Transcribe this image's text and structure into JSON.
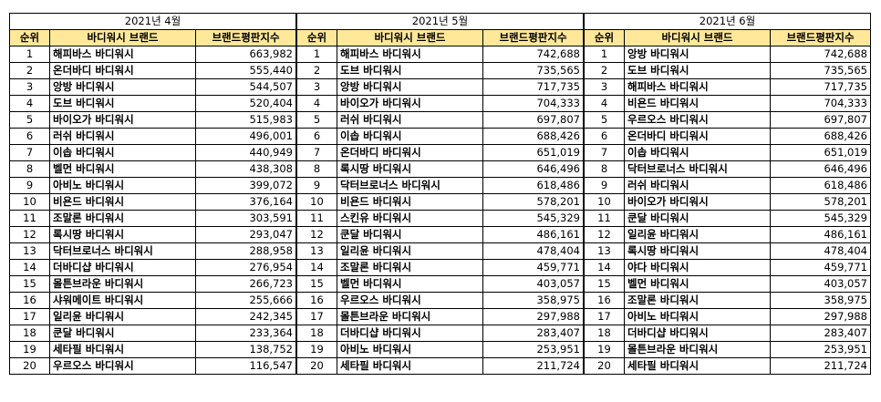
{
  "headers": {
    "rank": "순위",
    "brand": "바디워시 브랜드",
    "index": "브랜드평판지수"
  },
  "months": [
    {
      "title": "2021년 4월",
      "rows": [
        {
          "rank": "1",
          "brand": "해피바스 바디워시",
          "value": "663,982"
        },
        {
          "rank": "2",
          "brand": "온더바디 바디워시",
          "value": "555,440"
        },
        {
          "rank": "3",
          "brand": "앙방 바디워시",
          "value": "544,507"
        },
        {
          "rank": "4",
          "brand": "도브 바디워시",
          "value": "520,404"
        },
        {
          "rank": "5",
          "brand": "바이오가 바디워시",
          "value": "515,983"
        },
        {
          "rank": "6",
          "brand": "러쉬 바디워시",
          "value": "496,001"
        },
        {
          "rank": "7",
          "brand": "이솝 바디워시",
          "value": "440,949"
        },
        {
          "rank": "8",
          "brand": "벨먼 바디워시",
          "value": "438,308"
        },
        {
          "rank": "9",
          "brand": "아비노 바디워시",
          "value": "399,072"
        },
        {
          "rank": "10",
          "brand": "비욘드 바디워시",
          "value": "376,164"
        },
        {
          "rank": "11",
          "brand": "조말론 바디워시",
          "value": "303,591"
        },
        {
          "rank": "12",
          "brand": "록시땅 바디워시",
          "value": "293,047"
        },
        {
          "rank": "13",
          "brand": "닥터브로너스 바디워시",
          "value": "288,958"
        },
        {
          "rank": "14",
          "brand": "더바디샵 바디워시",
          "value": "276,954"
        },
        {
          "rank": "15",
          "brand": "몰튼브라운 바디워시",
          "value": "266,723"
        },
        {
          "rank": "16",
          "brand": "샤워메이트 바디워시",
          "value": "255,666"
        },
        {
          "rank": "17",
          "brand": "일리윤 바디워시",
          "value": "242,345"
        },
        {
          "rank": "18",
          "brand": "쿤달 바디워시",
          "value": "233,364"
        },
        {
          "rank": "19",
          "brand": "세타필 바디워시",
          "value": "138,752"
        },
        {
          "rank": "20",
          "brand": "우르오스 바디워시",
          "value": "116,547"
        }
      ]
    },
    {
      "title": "2021년 5월",
      "rows": [
        {
          "rank": "1",
          "brand": "해피바스 바디워시",
          "value": "742,688"
        },
        {
          "rank": "2",
          "brand": "도브 바디워시",
          "value": "735,565"
        },
        {
          "rank": "3",
          "brand": "앙방 바디워시",
          "value": "717,735"
        },
        {
          "rank": "4",
          "brand": "바이오가 바디워시",
          "value": "704,333"
        },
        {
          "rank": "5",
          "brand": "러쉬 바디워시",
          "value": "697,807"
        },
        {
          "rank": "6",
          "brand": "이솝 바디워시",
          "value": "688,426"
        },
        {
          "rank": "7",
          "brand": "온더바디 바디워시",
          "value": "651,019"
        },
        {
          "rank": "8",
          "brand": "록시땅 바디워시",
          "value": "646,496"
        },
        {
          "rank": "9",
          "brand": "닥터브로너스 바디워시",
          "value": "618,486"
        },
        {
          "rank": "10",
          "brand": "비욘드 바디워시",
          "value": "578,201"
        },
        {
          "rank": "11",
          "brand": "스킨유 바디워시",
          "value": "545,329"
        },
        {
          "rank": "12",
          "brand": "쿤달 바디워시",
          "value": "486,161"
        },
        {
          "rank": "13",
          "brand": "일리윤 바디워시",
          "value": "478,404"
        },
        {
          "rank": "14",
          "brand": "조말론 바디워시",
          "value": "459,771"
        },
        {
          "rank": "15",
          "brand": "벨먼 바디워시",
          "value": "403,057"
        },
        {
          "rank": "16",
          "brand": "우르오스 바디워시",
          "value": "358,975"
        },
        {
          "rank": "17",
          "brand": "몰튼브라운 바디워시",
          "value": "297,988"
        },
        {
          "rank": "18",
          "brand": "더바디샵 바디워시",
          "value": "283,407"
        },
        {
          "rank": "19",
          "brand": "아비노 바디워시",
          "value": "253,951"
        },
        {
          "rank": "20",
          "brand": "세타필 바디워시",
          "value": "211,724"
        }
      ]
    },
    {
      "title": "2021년 6월",
      "rows": [
        {
          "rank": "1",
          "brand": "앙방 바디워시",
          "value": "742,688"
        },
        {
          "rank": "2",
          "brand": "도브 바디워시",
          "value": "735,565"
        },
        {
          "rank": "3",
          "brand": "해피바스 바디워시",
          "value": "717,735"
        },
        {
          "rank": "4",
          "brand": "비욘드 바디워시",
          "value": "704,333"
        },
        {
          "rank": "5",
          "brand": "우르오스 바디워시",
          "value": "697,807"
        },
        {
          "rank": "6",
          "brand": "온더바디 바디워시",
          "value": "688,426"
        },
        {
          "rank": "7",
          "brand": "이솝 바디워시",
          "value": "651,019"
        },
        {
          "rank": "8",
          "brand": "닥터브로너스 바디워시",
          "value": "646,496"
        },
        {
          "rank": "9",
          "brand": "러쉬 바디워시",
          "value": "618,486"
        },
        {
          "rank": "10",
          "brand": "바이오가 바디워시",
          "value": "578,201"
        },
        {
          "rank": "11",
          "brand": "쿤달 바디워시",
          "value": "545,329"
        },
        {
          "rank": "12",
          "brand": "일리윤 바디워시",
          "value": "486,161"
        },
        {
          "rank": "13",
          "brand": "록시땅 바디워시",
          "value": "478,404"
        },
        {
          "rank": "14",
          "brand": "야다 바디워시",
          "value": "459,771"
        },
        {
          "rank": "15",
          "brand": "벨먼 바디워시",
          "value": "403,057"
        },
        {
          "rank": "16",
          "brand": "조말론 바디워시",
          "value": "358,975"
        },
        {
          "rank": "17",
          "brand": "아비노 바디워시",
          "value": "297,988"
        },
        {
          "rank": "18",
          "brand": "더바디샵 바디워시",
          "value": "283,407"
        },
        {
          "rank": "19",
          "brand": "몰튼브라운 바디워시",
          "value": "253,951"
        },
        {
          "rank": "20",
          "brand": "세타필 바디워시",
          "value": "211,724"
        }
      ]
    }
  ]
}
